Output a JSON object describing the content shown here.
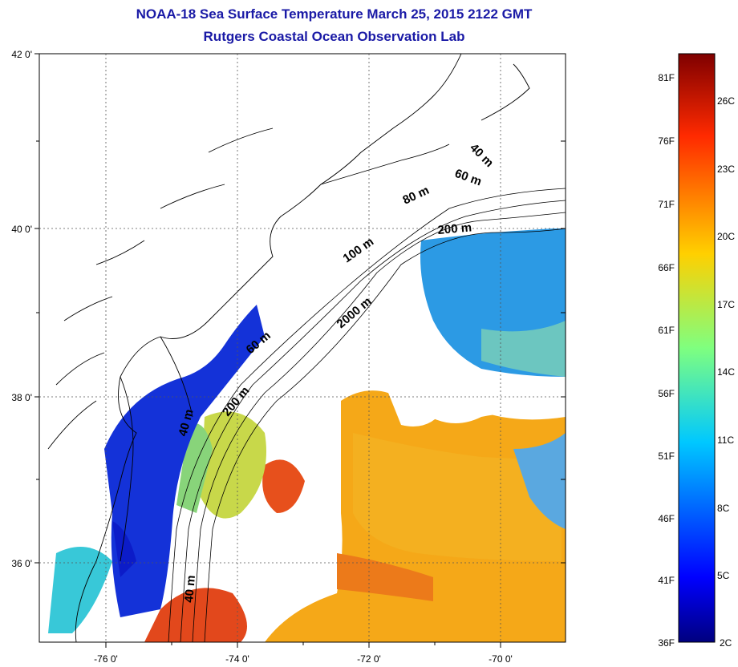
{
  "header": {
    "title": "NOAA-18 Sea Surface Temperature March 25, 2015 2122 GMT",
    "subtitle": "Rutgers Coastal Ocean Observation Lab"
  },
  "map": {
    "lat_labels": [
      "42 0'",
      "40 0'",
      "38 0'",
      "36 0'"
    ],
    "lon_labels": [
      "-76 0'",
      "-74 0'",
      "-72 0'",
      "-70 0'"
    ],
    "contours": [
      "40 m",
      "60 m",
      "80 m",
      "200 m",
      "100 m",
      "2000 m",
      "60 m",
      "200 m",
      "40 m",
      "40 m"
    ],
    "colors": {
      "land_outline": "#000000",
      "water_cold": "#0a2ad8",
      "water_cool": "#2aa0e8",
      "water_mild": "#7ad0a0",
      "water_warm": "#f4a014",
      "water_hot": "#e0401a"
    }
  },
  "colorbar": {
    "fahrenheit": [
      "81F",
      "76F",
      "71F",
      "66F",
      "61F",
      "56F",
      "51F",
      "46F",
      "41F",
      "36F"
    ],
    "celsius": [
      "26C",
      "23C",
      "20C",
      "17C",
      "14C",
      "11C",
      "8C",
      "5C",
      "2C"
    ],
    "range_f": [
      36,
      84
    ]
  }
}
